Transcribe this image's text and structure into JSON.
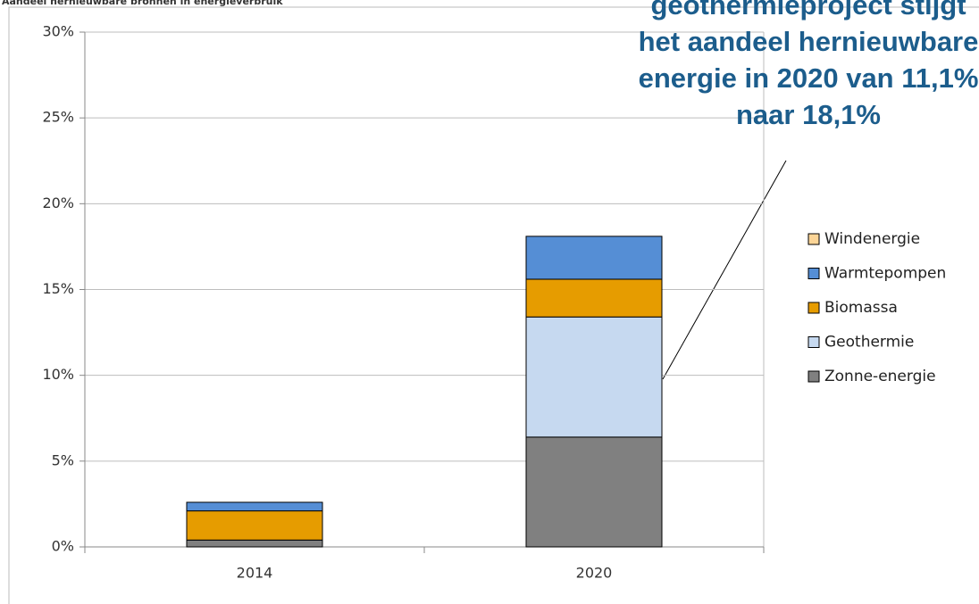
{
  "chart_data": {
    "type": "stacked_bar",
    "title": "Aandeel hernieuwbare bronnen in energieverbruik",
    "categories": [
      "2014",
      "2020"
    ],
    "series": [
      {
        "name": "Zonne-energie",
        "color": "#808080",
        "values": [
          0.4,
          6.4
        ]
      },
      {
        "name": "Geothermie",
        "color": "#c6d9f0",
        "values": [
          0,
          7.0
        ]
      },
      {
        "name": "Biomassa",
        "color": "#e69c00",
        "values": [
          1.7,
          2.2
        ]
      },
      {
        "name": "Warmtepompen",
        "color": "#558ed5",
        "values": [
          0.5,
          2.5
        ]
      },
      {
        "name": "Windenergie",
        "color": "#fcd597",
        "values": [
          0,
          0
        ]
      }
    ],
    "ylim": [
      0,
      30
    ],
    "yticks": [
      {
        "value": 0,
        "label": "0%"
      },
      {
        "value": 5,
        "label": "5%"
      },
      {
        "value": 10,
        "label": "10%"
      },
      {
        "value": 15,
        "label": "15%"
      },
      {
        "value": 20,
        "label": "20%"
      },
      {
        "value": 25,
        "label": "25%"
      },
      {
        "value": 30,
        "label": "30%"
      }
    ],
    "grid": true,
    "legend": "right",
    "annotation": [
      "geothermieproject stijgt",
      "het aandeel hernieuwbare",
      "energie in 2020 van 11,1%",
      "naar 18,1%"
    ]
  }
}
